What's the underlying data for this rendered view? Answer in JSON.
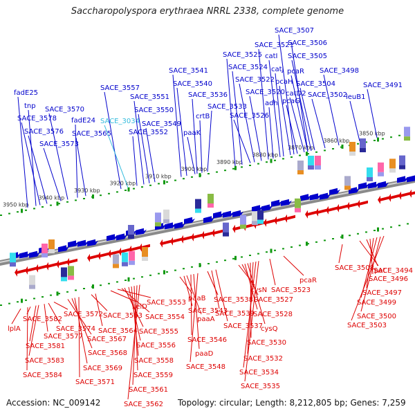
{
  "title": "Saccharopolyspora erythraea NRRL 2338, complete genome",
  "footer": {
    "accession": "Accession: NC_009142",
    "topology": "Topology: circular; Length: 8,212,805 bp; Genes: 7,259"
  },
  "colors": {
    "top_strand": "#0000cc",
    "bottom_strand": "#dd0000",
    "highlight": "#33bbdd",
    "ruler": "#119911"
  },
  "ruler_labels": [
    "3950 kbp",
    "3940 kbp",
    "3930 kbp",
    "3920 kbp",
    "3910 kbp",
    "3900 kbp",
    "3890 kbp",
    "3880 kbp",
    "3870 kbp",
    "3860 kbp",
    "3850 kbp"
  ],
  "top_labels": [
    {
      "text": "fadE25"
    },
    {
      "text": "tnp"
    },
    {
      "text": "SACE_3578"
    },
    {
      "text": "SACE_3576"
    },
    {
      "text": "SACE_3573"
    },
    {
      "text": "SACE_3570"
    },
    {
      "text": "fadE24"
    },
    {
      "text": "SACE_3565"
    },
    {
      "text": "SACE_3557"
    },
    {
      "text": "SACE_3034",
      "highlight": true
    },
    {
      "text": "SACE_3552"
    },
    {
      "text": "SACE_3551"
    },
    {
      "text": "SACE_3550"
    },
    {
      "text": "SACE_3549"
    },
    {
      "text": "SACE_3541"
    },
    {
      "text": "SACE_3540"
    },
    {
      "text": "SACE_3536"
    },
    {
      "text": "SACE_3533"
    },
    {
      "text": "crtB"
    },
    {
      "text": "paaK"
    },
    {
      "text": "SACE_3526"
    },
    {
      "text": "SACE_3525"
    },
    {
      "text": "SACE_3524"
    },
    {
      "text": "SACE_3522"
    },
    {
      "text": "SACE_3521"
    },
    {
      "text": "SACE_3520"
    },
    {
      "text": "catI"
    },
    {
      "text": "catJ"
    },
    {
      "text": "adh"
    },
    {
      "text": "pcaH"
    },
    {
      "text": "pcaG"
    },
    {
      "text": "catD2"
    },
    {
      "text": "pcaR"
    },
    {
      "text": "SACE_3507"
    },
    {
      "text": "SACE_3506"
    },
    {
      "text": "SACE_3505"
    },
    {
      "text": "SACE_3504"
    },
    {
      "text": "SACE_3502"
    },
    {
      "text": "SACE_3498"
    },
    {
      "text": "leuB1"
    },
    {
      "text": "SACE_3491"
    }
  ],
  "bottom_labels": [
    {
      "text": "lplA"
    },
    {
      "text": "SACE_3582"
    },
    {
      "text": "SACE_3581"
    },
    {
      "text": "SACE_3583"
    },
    {
      "text": "SACE_3584"
    },
    {
      "text": "SACE_3577"
    },
    {
      "text": "SACE_3574"
    },
    {
      "text": "SACE_3572"
    },
    {
      "text": "SACE_3567"
    },
    {
      "text": "SACE_3568"
    },
    {
      "text": "SACE_3569"
    },
    {
      "text": "SACE_3571"
    },
    {
      "text": "SACE_3563"
    },
    {
      "text": "SACE_3564"
    },
    {
      "text": "selD"
    },
    {
      "text": "SACE_3553"
    },
    {
      "text": "SACE_3554"
    },
    {
      "text": "SACE_3555"
    },
    {
      "text": "SACE_3556"
    },
    {
      "text": "SACE_3558"
    },
    {
      "text": "SACE_3559"
    },
    {
      "text": "SACE_3561"
    },
    {
      "text": "SACE_3562"
    },
    {
      "text": "paaB"
    },
    {
      "text": "SACE_3543"
    },
    {
      "text": "paaA"
    },
    {
      "text": "SACE_3546"
    },
    {
      "text": "paaD"
    },
    {
      "text": "SACE_3548"
    },
    {
      "text": "SACE_3538"
    },
    {
      "text": "SACE_3539"
    },
    {
      "text": "SACE_3537"
    },
    {
      "text": "cysN"
    },
    {
      "text": "SACE_3527"
    },
    {
      "text": "SACE_3528"
    },
    {
      "text": "cysQ"
    },
    {
      "text": "SACE_3530"
    },
    {
      "text": "SACE_3532"
    },
    {
      "text": "SACE_3534"
    },
    {
      "text": "SACE_3535"
    },
    {
      "text": "SACE_3523"
    },
    {
      "text": "pcaR"
    },
    {
      "text": "SACE_3508"
    },
    {
      "text": "pat"
    },
    {
      "text": "SACE_3494"
    },
    {
      "text": "SACE_3496"
    },
    {
      "text": "SACE_3497"
    },
    {
      "text": "SACE_3499"
    },
    {
      "text": "SACE_3500"
    },
    {
      "text": "SACE_3503"
    }
  ]
}
